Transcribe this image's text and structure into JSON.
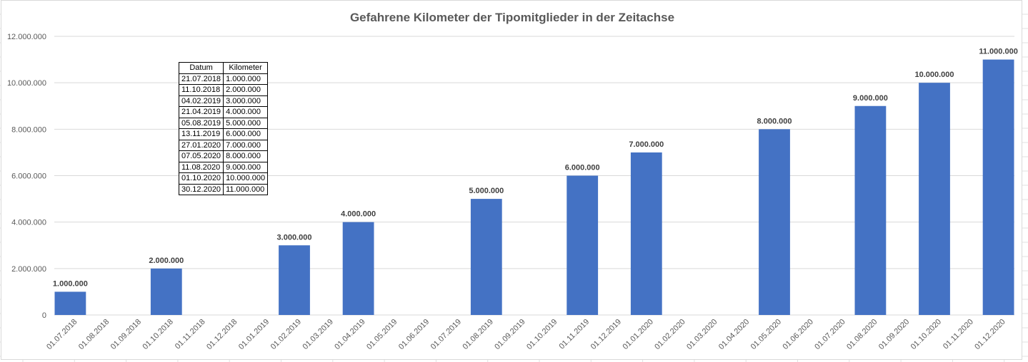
{
  "chart_data": {
    "type": "bar",
    "title": "Gefahrene Kilometer der Tipomitglieder in der Zeitachse",
    "xlabel": "",
    "ylabel": "",
    "ylim": [
      0,
      12000000
    ],
    "yticks": [
      "0",
      "2.000.000",
      "4.000.000",
      "6.000.000",
      "8.000.000",
      "10.000.000",
      "12.000.000"
    ],
    "ytick_values": [
      0,
      2000000,
      4000000,
      6000000,
      8000000,
      10000000,
      12000000
    ],
    "grid": true,
    "bar_color": "#4472C4",
    "categories": [
      "01.07.2018",
      "01.08.2018",
      "01.09.2018",
      "01.10.2018",
      "01.11.2018",
      "01.12.2018",
      "01.01.2019",
      "01.02.2019",
      "01.03.2019",
      "01.04.2019",
      "01.05.2019",
      "01.06.2019",
      "01.07.2019",
      "01.08.2019",
      "01.09.2019",
      "01.10.2019",
      "01.11.2019",
      "01.12.2019",
      "01.01.2020",
      "01.02.2020",
      "01.03.2020",
      "01.04.2020",
      "01.05.2020",
      "01.06.2020",
      "01.07.2020",
      "01.08.2020",
      "01.09.2020",
      "01.10.2020",
      "01.11.2020",
      "01.12.2020"
    ],
    "values": [
      1000000,
      null,
      null,
      2000000,
      null,
      null,
      null,
      3000000,
      null,
      4000000,
      null,
      null,
      null,
      5000000,
      null,
      null,
      6000000,
      null,
      7000000,
      null,
      null,
      null,
      8000000,
      null,
      null,
      9000000,
      null,
      10000000,
      null,
      11000000
    ],
    "data_labels": [
      "1.000.000",
      "",
      "",
      "2.000.000",
      "",
      "",
      "",
      "3.000.000",
      "",
      "4.000.000",
      "",
      "",
      "",
      "5.000.000",
      "",
      "",
      "6.000.000",
      "",
      "7.000.000",
      "",
      "",
      "",
      "8.000.000",
      "",
      "",
      "9.000.000",
      "",
      "10.000.000",
      "",
      "11.000.000"
    ]
  },
  "table": {
    "headers": [
      "Datum",
      "Kilometer"
    ],
    "rows": [
      [
        "21.07.2018",
        "1.000.000"
      ],
      [
        "11.10.2018",
        "2.000.000"
      ],
      [
        "04.02.2019",
        "3.000.000"
      ],
      [
        "21.04.2019",
        "4.000.000"
      ],
      [
        "05.08.2019",
        "5.000.000"
      ],
      [
        "13.11.2019",
        "6.000.000"
      ],
      [
        "27.01.2020",
        "7.000.000"
      ],
      [
        "07.05.2020",
        "8.000.000"
      ],
      [
        "11.08.2020",
        "9.000.000"
      ],
      [
        "01.10.2020",
        "10.000.000"
      ],
      [
        "30.12.2020",
        "11.000.000"
      ]
    ]
  }
}
